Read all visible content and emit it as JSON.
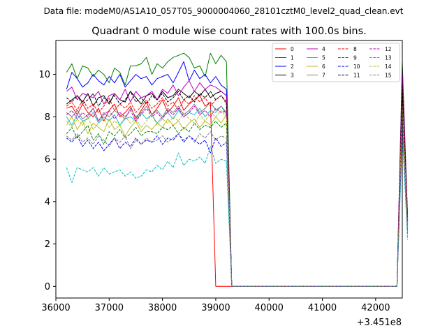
{
  "chart_data": {
    "type": "line",
    "suptitle": "Data file: modeM0/AS1A10_057T05_9000004060_28101cztM0_level2_quad_clean.evt",
    "title": "Quadrant 0 module wise count rates with 100.0s bins.",
    "xlabel": "",
    "ylabel": "",
    "x_offset_label": "+3.451e8",
    "xlim": [
      36000,
      42500
    ],
    "ylim": [
      -0.55,
      11.6
    ],
    "xticks": [
      36000,
      37000,
      38000,
      39000,
      40000,
      41000,
      42000
    ],
    "yticks": [
      0,
      2,
      4,
      6,
      8,
      10
    ],
    "grid": false,
    "legend_position": "top-right",
    "x_start": 36200,
    "x_step": 100,
    "series": [
      {
        "name": "0",
        "color": "#ff0000",
        "style": "solid",
        "values": [
          8.4,
          8.5,
          8.1,
          8.6,
          8.2,
          8.0,
          8.4,
          7.8,
          8.3,
          8.6,
          8.0,
          8.2,
          8.5,
          7.9,
          8.3,
          8.7,
          8.1,
          8.4,
          8.8,
          8.2,
          8.5,
          8.9,
          8.3,
          8.6,
          8.8,
          9.0,
          8.5,
          8.7,
          0.0,
          0.0,
          0.0,
          0.0,
          0.0,
          0.0,
          0.0,
          0.0,
          0.0,
          0.0,
          0.0,
          0.0,
          0.0,
          0.0,
          0.0,
          0.0,
          0.0,
          0.0,
          0.0,
          0.0,
          0.0,
          0.0,
          0.0,
          0.0,
          0.0,
          0.0,
          0.0,
          0.0,
          0.0,
          0.0,
          0.0,
          0.0,
          0.0,
          0.0,
          0.0,
          9.1,
          3.0
        ]
      },
      {
        "name": "1",
        "color": "#008000",
        "style": "solid",
        "values": [
          10.1,
          10.5,
          9.8,
          10.4,
          10.3,
          9.9,
          10.2,
          10.0,
          9.6,
          10.3,
          10.1,
          9.5,
          10.4,
          10.4,
          10.5,
          10.8,
          10.0,
          10.5,
          10.3,
          10.6,
          10.8,
          10.9,
          11.0,
          10.8,
          10.3,
          10.4,
          9.9,
          11.0,
          10.5,
          10.9,
          10.6,
          0.0,
          0.0,
          0.0,
          0.0,
          0.0,
          0.0,
          0.0,
          0.0,
          0.0,
          0.0,
          0.0,
          0.0,
          0.0,
          0.0,
          0.0,
          0.0,
          0.0,
          0.0,
          0.0,
          0.0,
          0.0,
          0.0,
          0.0,
          0.0,
          0.0,
          0.0,
          0.0,
          0.0,
          0.0,
          0.0,
          0.0,
          0.0,
          10.6,
          3.3
        ]
      },
      {
        "name": "2",
        "color": "#0000ff",
        "style": "solid",
        "values": [
          9.3,
          10.1,
          9.8,
          9.4,
          9.6,
          10.0,
          9.7,
          9.5,
          9.9,
          9.6,
          10.0,
          9.4,
          9.7,
          10.0,
          9.8,
          9.9,
          9.5,
          9.8,
          9.9,
          10.0,
          9.6,
          10.1,
          10.6,
          9.7,
          10.2,
          9.8,
          10.0,
          9.6,
          9.9,
          9.5,
          9.3,
          0.0,
          0.0,
          0.0,
          0.0,
          0.0,
          0.0,
          0.0,
          0.0,
          0.0,
          0.0,
          0.0,
          0.0,
          0.0,
          0.0,
          0.0,
          0.0,
          0.0,
          0.0,
          0.0,
          0.0,
          0.0,
          0.0,
          0.0,
          0.0,
          0.0,
          0.0,
          0.0,
          0.0,
          0.0,
          0.0,
          0.0,
          0.0,
          10.0,
          3.2
        ]
      },
      {
        "name": "3",
        "color": "#000000",
        "style": "solid",
        "values": [
          8.6,
          8.8,
          9.0,
          8.7,
          9.1,
          8.5,
          8.9,
          9.0,
          8.6,
          9.1,
          8.8,
          8.7,
          9.2,
          8.9,
          8.6,
          9.0,
          9.1,
          8.8,
          9.2,
          8.9,
          9.0,
          9.3,
          9.1,
          8.9,
          9.2,
          9.0,
          9.3,
          8.9,
          9.1,
          9.2,
          9.0,
          0.0,
          0.0,
          0.0,
          0.0,
          0.0,
          0.0,
          0.0,
          0.0,
          0.0,
          0.0,
          0.0,
          0.0,
          0.0,
          0.0,
          0.0,
          0.0,
          0.0,
          0.0,
          0.0,
          0.0,
          0.0,
          0.0,
          0.0,
          0.0,
          0.0,
          0.0,
          0.0,
          0.0,
          0.0,
          0.0,
          0.0,
          0.0,
          9.5,
          3.1
        ]
      },
      {
        "name": "4",
        "color": "#bf00bf",
        "style": "solid",
        "values": [
          9.2,
          9.4,
          8.8,
          9.1,
          9.0,
          8.9,
          9.2,
          8.6,
          9.0,
          9.1,
          8.8,
          9.3,
          8.7,
          9.2,
          8.9,
          9.0,
          9.2,
          8.8,
          9.3,
          9.1,
          9.5,
          9.0,
          9.4,
          9.7,
          9.2,
          9.6,
          9.3,
          9.5,
          9.4,
          9.2,
          9.0,
          0.0,
          0.0,
          0.0,
          0.0,
          0.0,
          0.0,
          0.0,
          0.0,
          0.0,
          0.0,
          0.0,
          0.0,
          0.0,
          0.0,
          0.0,
          0.0,
          0.0,
          0.0,
          0.0,
          0.0,
          0.0,
          0.0,
          0.0,
          0.0,
          0.0,
          0.0,
          0.0,
          0.0,
          0.0,
          0.0,
          0.0,
          0.0,
          10.3,
          3.2
        ]
      },
      {
        "name": "5",
        "color": "#17becf",
        "style": "solid",
        "values": [
          8.0,
          7.6,
          8.1,
          7.8,
          7.9,
          8.2,
          7.7,
          8.0,
          7.8,
          8.1,
          7.6,
          7.9,
          8.0,
          7.8,
          8.2,
          7.9,
          8.1,
          7.7,
          8.0,
          8.2,
          7.9,
          8.3,
          8.0,
          8.2,
          8.1,
          8.4,
          8.0,
          8.3,
          8.2,
          8.5,
          8.1,
          0.0,
          0.0,
          0.0,
          0.0,
          0.0,
          0.0,
          0.0,
          0.0,
          0.0,
          0.0,
          0.0,
          0.0,
          0.0,
          0.0,
          0.0,
          0.0,
          0.0,
          0.0,
          0.0,
          0.0,
          0.0,
          0.0,
          0.0,
          0.0,
          0.0,
          0.0,
          0.0,
          0.0,
          0.0,
          0.0,
          0.0,
          0.0,
          8.8,
          2.8
        ]
      },
      {
        "name": "6",
        "color": "#bcbd22",
        "style": "solid",
        "values": [
          7.6,
          8.0,
          7.4,
          7.8,
          7.2,
          7.7,
          7.5,
          7.3,
          7.9,
          7.4,
          7.6,
          7.1,
          7.5,
          7.8,
          7.3,
          7.6,
          7.4,
          7.7,
          7.5,
          7.9,
          7.6,
          7.8,
          7.4,
          7.7,
          7.9,
          7.5,
          7.8,
          7.6,
          8.0,
          7.7,
          8.1,
          0.0,
          0.0,
          0.0,
          0.0,
          0.0,
          0.0,
          0.0,
          0.0,
          0.0,
          0.0,
          0.0,
          0.0,
          0.0,
          0.0,
          0.0,
          0.0,
          0.0,
          0.0,
          0.0,
          0.0,
          0.0,
          0.0,
          0.0,
          0.0,
          0.0,
          0.0,
          0.0,
          0.0,
          0.0,
          0.0,
          0.0,
          0.0,
          8.4,
          2.7
        ]
      },
      {
        "name": "7",
        "color": "#7f7f7f",
        "style": "solid",
        "values": [
          8.2,
          8.0,
          8.3,
          7.9,
          8.1,
          8.4,
          7.8,
          8.2,
          8.0,
          8.3,
          8.1,
          7.9,
          8.4,
          8.0,
          8.2,
          8.5,
          8.1,
          8.3,
          8.0,
          8.4,
          8.2,
          8.5,
          8.1,
          8.3,
          8.6,
          8.2,
          8.4,
          8.7,
          8.3,
          8.5,
          8.2,
          0.0,
          0.0,
          0.0,
          0.0,
          0.0,
          0.0,
          0.0,
          0.0,
          0.0,
          0.0,
          0.0,
          0.0,
          0.0,
          0.0,
          0.0,
          0.0,
          0.0,
          0.0,
          0.0,
          0.0,
          0.0,
          0.0,
          0.0,
          0.0,
          0.0,
          0.0,
          0.0,
          0.0,
          0.0,
          0.0,
          0.0,
          0.0,
          9.0,
          2.9
        ]
      },
      {
        "name": "8",
        "color": "#ff0000",
        "style": "dashed",
        "values": [
          8.5,
          8.7,
          8.3,
          8.8,
          8.4,
          8.6,
          8.2,
          8.5,
          8.9,
          8.3,
          8.6,
          8.4,
          8.7,
          8.2,
          8.5,
          8.8,
          8.4,
          8.6,
          8.9,
          8.5,
          8.7,
          8.3,
          8.8,
          8.6,
          9.0,
          8.7,
          8.9,
          8.5,
          8.8,
          9.0,
          8.6,
          0.0,
          0.0,
          0.0,
          0.0,
          0.0,
          0.0,
          0.0,
          0.0,
          0.0,
          0.0,
          0.0,
          0.0,
          0.0,
          0.0,
          0.0,
          0.0,
          0.0,
          0.0,
          0.0,
          0.0,
          0.0,
          0.0,
          0.0,
          0.0,
          0.0,
          0.0,
          0.0,
          0.0,
          0.0,
          0.0,
          0.0,
          0.0,
          9.4,
          3.0
        ]
      },
      {
        "name": "9",
        "color": "#008000",
        "style": "dashed",
        "values": [
          7.2,
          7.5,
          7.0,
          7.3,
          7.6,
          6.9,
          7.2,
          6.7,
          7.3,
          7.1,
          7.4,
          7.0,
          7.2,
          7.5,
          7.1,
          7.3,
          7.3,
          7.2,
          7.5,
          7.4,
          7.6,
          7.2,
          7.5,
          7.3,
          7.7,
          7.4,
          7.6,
          7.5,
          7.8,
          7.5,
          7.7,
          0.0,
          0.0,
          0.0,
          0.0,
          0.0,
          0.0,
          0.0,
          0.0,
          0.0,
          0.0,
          0.0,
          0.0,
          0.0,
          0.0,
          0.0,
          0.0,
          0.0,
          0.0,
          0.0,
          0.0,
          0.0,
          0.0,
          0.0,
          0.0,
          0.0,
          0.0,
          0.0,
          0.0,
          0.0,
          0.0,
          0.0,
          0.0,
          8.0,
          2.6
        ]
      },
      {
        "name": "10",
        "color": "#0000ff",
        "style": "dashed",
        "values": [
          7.0,
          6.8,
          7.1,
          6.6,
          6.9,
          6.5,
          6.8,
          6.4,
          6.7,
          7.0,
          6.5,
          6.8,
          6.6,
          7.0,
          6.7,
          6.9,
          6.8,
          7.1,
          6.7,
          7.0,
          6.9,
          7.2,
          6.8,
          7.1,
          6.9,
          6.7,
          6.9,
          6.3,
          7.0,
          6.6,
          6.8,
          0.0,
          0.0,
          0.0,
          0.0,
          0.0,
          0.0,
          0.0,
          0.0,
          0.0,
          0.0,
          0.0,
          0.0,
          0.0,
          0.0,
          0.0,
          0.0,
          0.0,
          0.0,
          0.0,
          0.0,
          0.0,
          0.0,
          0.0,
          0.0,
          0.0,
          0.0,
          0.0,
          0.0,
          0.0,
          0.0,
          0.0,
          0.0,
          7.4,
          2.4
        ]
      },
      {
        "name": "11",
        "color": "#000000",
        "style": "dashed",
        "values": [
          8.9,
          8.7,
          9.0,
          8.6,
          8.8,
          9.1,
          8.5,
          8.9,
          8.7,
          9.0,
          8.6,
          8.8,
          9.2,
          8.7,
          8.9,
          8.6,
          9.0,
          8.8,
          9.1,
          8.7,
          8.9,
          9.2,
          8.8,
          9.0,
          8.7,
          9.1,
          8.9,
          9.2,
          8.8,
          9.0,
          8.7,
          0.0,
          0.0,
          0.0,
          0.0,
          0.0,
          0.0,
          0.0,
          0.0,
          0.0,
          0.0,
          0.0,
          0.0,
          0.0,
          0.0,
          0.0,
          0.0,
          0.0,
          0.0,
          0.0,
          0.0,
          0.0,
          0.0,
          0.0,
          0.0,
          0.0,
          0.0,
          0.0,
          0.0,
          0.0,
          0.0,
          0.0,
          0.0,
          9.6,
          3.1
        ]
      },
      {
        "name": "12",
        "color": "#bf00bf",
        "style": "dashed",
        "values": [
          8.1,
          8.3,
          7.9,
          8.2,
          8.0,
          8.4,
          7.8,
          8.1,
          8.3,
          7.9,
          8.2,
          8.0,
          8.3,
          7.8,
          8.1,
          8.4,
          8.0,
          8.2,
          7.9,
          8.3,
          8.1,
          8.4,
          8.0,
          8.2,
          8.5,
          8.1,
          8.3,
          8.0,
          8.4,
          8.2,
          8.3,
          0.0,
          0.0,
          0.0,
          0.0,
          0.0,
          0.0,
          0.0,
          0.0,
          0.0,
          0.0,
          0.0,
          0.0,
          0.0,
          0.0,
          0.0,
          0.0,
          0.0,
          0.0,
          0.0,
          0.0,
          0.0,
          0.0,
          0.0,
          0.0,
          0.0,
          0.0,
          0.0,
          0.0,
          0.0,
          0.0,
          0.0,
          0.0,
          8.7,
          2.8
        ]
      },
      {
        "name": "13",
        "color": "#00bfbf",
        "style": "dashed",
        "values": [
          5.6,
          4.9,
          5.6,
          5.5,
          5.4,
          5.6,
          5.2,
          5.6,
          5.3,
          5.4,
          5.5,
          5.2,
          5.4,
          5.1,
          5.2,
          5.5,
          5.4,
          5.7,
          5.5,
          5.9,
          5.6,
          6.3,
          5.7,
          6.0,
          5.9,
          6.1,
          5.8,
          6.6,
          5.8,
          6.0,
          5.9,
          0.0,
          0.0,
          0.0,
          0.0,
          0.0,
          0.0,
          0.0,
          0.0,
          0.0,
          0.0,
          0.0,
          0.0,
          0.0,
          0.0,
          0.0,
          0.0,
          0.0,
          0.0,
          0.0,
          0.0,
          0.0,
          0.0,
          0.0,
          0.0,
          0.0,
          0.0,
          0.0,
          0.0,
          0.0,
          0.0,
          0.0,
          0.0,
          7.2,
          2.2
        ]
      },
      {
        "name": "14",
        "color": "#bcbd22",
        "style": "dashed",
        "values": [
          7.8,
          7.5,
          7.9,
          7.6,
          8.0,
          7.4,
          7.7,
          7.9,
          7.5,
          7.8,
          7.6,
          8.0,
          7.7,
          7.9,
          7.5,
          7.8,
          8.1,
          7.6,
          7.9,
          7.7,
          8.0,
          7.8,
          8.2,
          7.9,
          7.7,
          8.1,
          7.8,
          8.2,
          8.0,
          8.3,
          8.0,
          0.0,
          0.0,
          0.0,
          0.0,
          0.0,
          0.0,
          0.0,
          0.0,
          0.0,
          0.0,
          0.0,
          0.0,
          0.0,
          0.0,
          0.0,
          0.0,
          0.0,
          0.0,
          0.0,
          0.0,
          0.0,
          0.0,
          0.0,
          0.0,
          0.0,
          0.0,
          0.0,
          0.0,
          0.0,
          0.0,
          0.0,
          0.0,
          8.6,
          2.8
        ]
      },
      {
        "name": "15",
        "color": "#7f7f7f",
        "style": "dashed",
        "values": [
          7.1,
          6.9,
          7.2,
          6.8,
          7.0,
          6.7,
          7.1,
          6.9,
          6.6,
          7.0,
          6.8,
          7.1,
          6.5,
          6.9,
          6.7,
          7.0,
          6.8,
          6.9,
          7.1,
          6.8,
          7.0,
          7.2,
          6.9,
          7.1,
          6.8,
          7.2,
          7.0,
          7.3,
          6.9,
          7.1,
          7.0,
          0.0,
          0.0,
          0.0,
          0.0,
          0.0,
          0.0,
          0.0,
          0.0,
          0.0,
          0.0,
          0.0,
          0.0,
          0.0,
          0.0,
          0.0,
          0.0,
          0.0,
          0.0,
          0.0,
          0.0,
          0.0,
          0.0,
          0.0,
          0.0,
          0.0,
          0.0,
          0.0,
          0.0,
          0.0,
          0.0,
          0.0,
          0.0,
          7.8,
          2.5
        ]
      }
    ]
  }
}
